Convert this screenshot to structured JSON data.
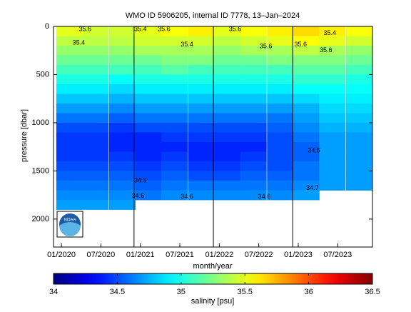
{
  "chart_data": {
    "type": "heatmap",
    "title": "WMO ID 5906205, internal ID 7778, 13–Jan–2024",
    "x_label": "month/year",
    "y_label": "pressure [dbar]",
    "colorbar_label": "salinity [psu]",
    "x": [
      2020.1,
      2020.43,
      2020.77,
      2021.1,
      2021.43,
      2021.77,
      2022.1,
      2022.43,
      2022.77,
      2023.1,
      2023.43,
      2023.77
    ],
    "y": [
      50,
      150,
      250,
      350,
      450,
      550,
      650,
      750,
      850,
      950,
      1050,
      1150,
      1250,
      1350,
      1450,
      1550,
      1650,
      1750,
      1850
    ],
    "z": [
      [
        35.5,
        35.45,
        35.45,
        35.5,
        35.55,
        35.6,
        35.5,
        35.55,
        35.6,
        35.65,
        35.6,
        35.55
      ],
      [
        35.4,
        35.4,
        35.4,
        35.45,
        35.45,
        35.45,
        35.4,
        35.45,
        35.5,
        35.55,
        35.5,
        35.45
      ],
      [
        35.3,
        35.3,
        35.3,
        35.35,
        35.35,
        35.35,
        35.3,
        35.35,
        35.35,
        35.4,
        35.35,
        35.3
      ],
      [
        35.2,
        35.2,
        35.2,
        35.2,
        35.25,
        35.25,
        35.2,
        35.2,
        35.25,
        35.25,
        35.25,
        35.2
      ],
      [
        35.1,
        35.1,
        35.1,
        35.1,
        35.15,
        35.1,
        35.1,
        35.1,
        35.1,
        35.15,
        35.15,
        35.1
      ],
      [
        35.0,
        35.0,
        34.95,
        35.0,
        35.0,
        35.0,
        35.0,
        35.0,
        35.0,
        35.05,
        35.05,
        35.0
      ],
      [
        34.9,
        34.9,
        34.85,
        34.9,
        34.9,
        34.9,
        34.9,
        34.9,
        34.9,
        34.95,
        34.95,
        34.95
      ],
      [
        34.8,
        34.8,
        34.75,
        34.8,
        34.8,
        34.8,
        34.8,
        34.8,
        34.8,
        34.85,
        34.9,
        34.9
      ],
      [
        34.7,
        34.7,
        34.65,
        34.7,
        34.7,
        34.7,
        34.7,
        34.7,
        34.7,
        34.75,
        34.85,
        34.85
      ],
      [
        34.6,
        34.6,
        34.55,
        34.6,
        34.6,
        34.6,
        34.6,
        34.6,
        34.6,
        34.7,
        34.8,
        34.8
      ],
      [
        34.5,
        34.5,
        34.45,
        34.5,
        34.5,
        34.5,
        34.5,
        34.5,
        34.55,
        34.65,
        34.75,
        34.75
      ],
      [
        34.45,
        34.45,
        34.4,
        34.4,
        34.45,
        34.45,
        34.45,
        34.45,
        34.5,
        34.6,
        34.7,
        34.7
      ],
      [
        34.45,
        34.45,
        34.4,
        34.4,
        34.4,
        34.4,
        34.4,
        34.4,
        34.5,
        34.55,
        34.7,
        34.7
      ],
      [
        34.45,
        34.45,
        34.45,
        34.4,
        34.45,
        34.4,
        34.4,
        34.45,
        34.5,
        34.55,
        34.7,
        34.7
      ],
      [
        34.5,
        34.5,
        34.5,
        34.45,
        34.5,
        34.45,
        34.45,
        34.5,
        34.5,
        34.6,
        34.7,
        34.7
      ],
      [
        34.55,
        34.55,
        34.55,
        34.5,
        34.55,
        34.5,
        34.5,
        34.55,
        34.55,
        34.6,
        34.7,
        34.7
      ],
      [
        34.6,
        34.6,
        34.6,
        34.55,
        34.6,
        34.6,
        34.6,
        34.6,
        34.6,
        34.65,
        34.7,
        34.7
      ],
      [
        34.65,
        34.65,
        34.65,
        34.6,
        34.65,
        34.65,
        34.65,
        34.65,
        34.65,
        34.7,
        null,
        null
      ],
      [
        34.7,
        34.7,
        34.7,
        null,
        null,
        null,
        null,
        null,
        null,
        null,
        null,
        null
      ]
    ],
    "xlim": [
      2019.9,
      2023.94
    ],
    "xticks": [
      {
        "value": 2020.0,
        "label": "01/2020"
      },
      {
        "value": 2020.5,
        "label": "07/2020"
      },
      {
        "value": 2021.0,
        "label": "01/2021"
      },
      {
        "value": 2021.5,
        "label": "07/2021"
      },
      {
        "value": 2022.0,
        "label": "01/2022"
      },
      {
        "value": 2022.5,
        "label": "07/2022"
      },
      {
        "value": 2023.0,
        "label": "01/2023"
      },
      {
        "value": 2023.5,
        "label": "07/2023"
      }
    ],
    "ylim": [
      2290,
      0
    ],
    "yticks": [
      0,
      500,
      1000,
      1500,
      2000
    ],
    "vlines": [
      2020.92,
      2021.925,
      2022.93
    ],
    "clim": [
      34,
      36.5
    ],
    "cticks": [
      34,
      34.5,
      35,
      35.5,
      36,
      36.5
    ],
    "annotations": [
      {
        "text": "35.6",
        "x": 2020.3,
        "y": 30
      },
      {
        "text": "35.4",
        "x": 2020.22,
        "y": 170
      },
      {
        "text": "35.4",
        "x": 2021.0,
        "y": 30
      },
      {
        "text": "35.6",
        "x": 2021.3,
        "y": 30
      },
      {
        "text": "35.4",
        "x": 2021.59,
        "y": 190
      },
      {
        "text": "35.6",
        "x": 2022.2,
        "y": 30
      },
      {
        "text": "35.6",
        "x": 2022.59,
        "y": 210
      },
      {
        "text": "35.6",
        "x": 2023.03,
        "y": 190
      },
      {
        "text": "35.6",
        "x": 2023.35,
        "y": 250
      },
      {
        "text": "35.4",
        "x": 2023.4,
        "y": 70
      },
      {
        "text": "34.5",
        "x": 2021.0,
        "y": 1600
      },
      {
        "text": "34.6",
        "x": 2020.97,
        "y": 1760
      },
      {
        "text": "34.6",
        "x": 2021.59,
        "y": 1770
      },
      {
        "text": "34.6",
        "x": 2022.57,
        "y": 1770
      },
      {
        "text": "34.7",
        "x": 2023.18,
        "y": 1680
      },
      {
        "text": "34.5",
        "x": 2023.2,
        "y": 1290
      }
    ]
  }
}
